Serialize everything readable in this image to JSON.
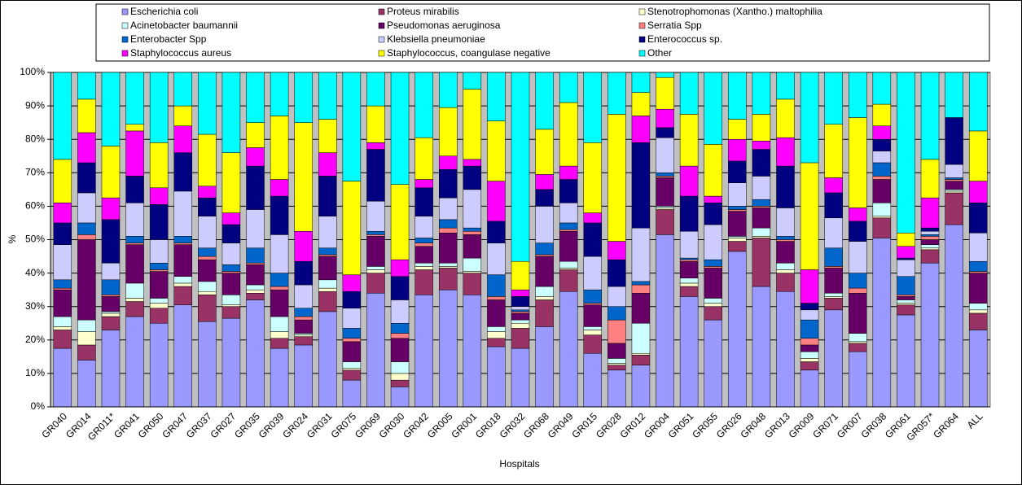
{
  "chart_data": {
    "type": "stacked_bar",
    "x_label": "Hospitals",
    "y_label": "%",
    "categories": [
      "GR040",
      "GR014",
      "GR011*",
      "GR041",
      "GR050",
      "GR047",
      "GR037",
      "GR027",
      "GR035",
      "GR039",
      "GR024",
      "GR031",
      "GR075",
      "GR069",
      "GR030",
      "GR042",
      "GR005",
      "GR001",
      "GR018",
      "GR032",
      "GR068",
      "GR049",
      "GR015",
      "GR028",
      "GR012",
      "GR004",
      "GR051",
      "GR055",
      "GR026",
      "GR048",
      "GR013",
      "GR009",
      "GR071",
      "GR007",
      "GR038",
      "GR061",
      "GR057*",
      "GR064",
      "ALL"
    ],
    "ylim": [
      0,
      100
    ],
    "yticks": [
      {
        "value": 0,
        "label": "0%"
      },
      {
        "value": 10,
        "label": "10%"
      },
      {
        "value": 20,
        "label": "20%"
      },
      {
        "value": 30,
        "label": "30%"
      },
      {
        "value": 40,
        "label": "40%"
      },
      {
        "value": 50,
        "label": "50%"
      },
      {
        "value": 60,
        "label": "60%"
      },
      {
        "value": 70,
        "label": "70%"
      },
      {
        "value": 80,
        "label": "80%"
      },
      {
        "value": 90,
        "label": "90%"
      },
      {
        "value": 100,
        "label": "100%"
      }
    ],
    "grid": true,
    "legend": "top",
    "series": [
      {
        "name": "Escherichia coli",
        "color": "#9999ff",
        "values": [
          17.5,
          14,
          23,
          27,
          25,
          30.5,
          25.5,
          26.5,
          32,
          17.5,
          18.5,
          28.5,
          8,
          34,
          6,
          33.5,
          35,
          33.5,
          18,
          17.5,
          24,
          34.5,
          16,
          11,
          12.5,
          51.5,
          33,
          26,
          46.5,
          36,
          34.5,
          11,
          29,
          16.5,
          50.5,
          27.5,
          43,
          54.5,
          23
        ]
      },
      {
        "name": "Proteus mirabilis",
        "color": "#993366",
        "values": [
          5.5,
          4.5,
          4,
          4.5,
          4.5,
          5.5,
          8,
          3.5,
          2,
          3,
          2.5,
          6,
          3,
          6,
          2,
          7.5,
          6.5,
          6.5,
          2.5,
          6,
          8,
          6.5,
          5.5,
          1.5,
          3,
          7.5,
          3,
          4,
          3,
          14.5,
          5.5,
          2.5,
          3.5,
          2.5,
          6,
          3,
          4,
          9.5,
          5
        ]
      },
      {
        "name": "Stenotrophomonas (Xantho.) maltophilia",
        "color": "#ffffcc",
        "values": [
          1,
          4,
          1,
          1,
          1.5,
          1,
          1,
          0.5,
          1,
          2,
          0.5,
          1,
          0.5,
          1,
          2,
          1,
          0.5,
          0.5,
          2,
          1.5,
          1,
          0.5,
          1.5,
          0.5,
          0.5,
          0.5,
          1,
          1,
          1,
          0.5,
          1,
          1,
          0.5,
          0.5,
          0.5,
          0.5,
          0.5,
          0.5,
          1
        ]
      },
      {
        "name": "Acinetobacter baumannii",
        "color": "#ccffff",
        "values": [
          3,
          3.5,
          0.5,
          4.5,
          1.5,
          2,
          3,
          3,
          1.5,
          4.5,
          0.5,
          2.5,
          2,
          1,
          3.5,
          1,
          1,
          4,
          1.5,
          1,
          3,
          2,
          1,
          1.5,
          9,
          0.5,
          1.5,
          1.5,
          0.5,
          2.5,
          2,
          2,
          1,
          2.5,
          4,
          1,
          1,
          0.5,
          2
        ]
      },
      {
        "name": "Pseudomonas aeruginosa",
        "color": "#660066",
        "values": [
          8,
          24,
          4.5,
          11.5,
          8,
          9.5,
          6.5,
          6.5,
          6,
          8,
          4,
          7,
          6,
          9,
          7,
          5,
          9,
          7,
          8,
          2,
          9,
          9,
          6.5,
          4.5,
          9,
          8.5,
          5,
          9,
          7.5,
          6,
          6.5,
          2,
          7.5,
          12,
          7,
          1,
          1.5,
          2.5,
          9
        ]
      },
      {
        "name": "Serratia Spp",
        "color": "#ff8080",
        "values": [
          0.5,
          1.5,
          0.5,
          0.5,
          0.5,
          0.5,
          1,
          0.5,
          0.5,
          1,
          1,
          0.5,
          1,
          0.5,
          1.5,
          1,
          1.5,
          1,
          1,
          0.5,
          0.5,
          0.5,
          0.5,
          7,
          2.5,
          0.5,
          0.5,
          0.5,
          0.5,
          0.5,
          0.5,
          2,
          0.5,
          1.5,
          1,
          0.5,
          1,
          0.5,
          0.5
        ]
      },
      {
        "name": "Enterobacter Spp",
        "color": "#0066cc",
        "values": [
          2.5,
          3.5,
          4.5,
          2,
          2,
          2,
          2.5,
          2,
          4.5,
          4,
          2.5,
          2,
          3,
          1,
          3,
          1.5,
          2.5,
          1,
          6.5,
          0.5,
          3.5,
          2,
          4,
          4,
          1,
          1,
          0.5,
          2,
          1,
          2,
          1,
          5.5,
          5.5,
          4.5,
          4,
          5.5,
          0.5,
          0.5,
          3
        ]
      },
      {
        "name": "Klebsiella pneumoniae",
        "color": "#ccccff",
        "values": [
          10.5,
          9,
          5,
          10,
          7,
          13.5,
          9.5,
          6.5,
          11.5,
          11.5,
          7,
          9.5,
          6,
          9,
          7,
          6.5,
          6.5,
          11.5,
          9.5,
          1,
          11,
          6,
          10,
          6,
          16,
          10.5,
          8,
          10.5,
          7,
          7,
          8.5,
          3,
          9,
          9.5,
          3.5,
          5,
          1,
          4,
          8.5
        ]
      },
      {
        "name": "Enterococcus sp.",
        "color": "#000080",
        "values": [
          6.5,
          9,
          13,
          8,
          10.5,
          11.5,
          5.5,
          5.5,
          13,
          11.5,
          7,
          12,
          5,
          15.5,
          7,
          8.5,
          8.5,
          7,
          6.5,
          3,
          5,
          7,
          10,
          8,
          25.5,
          3,
          10.5,
          6.5,
          6.5,
          8,
          12.5,
          2,
          7.5,
          6,
          3.5,
          0.5,
          1,
          14,
          9
        ]
      },
      {
        "name": "Staphylococcus aureus",
        "color": "#ff00ff",
        "values": [
          6,
          9,
          6.5,
          13.5,
          5,
          8,
          3.5,
          3.5,
          5.5,
          5,
          9,
          7,
          5,
          2,
          5,
          2.5,
          4,
          2,
          12,
          2,
          4.5,
          4,
          3,
          5.5,
          8,
          5.5,
          9,
          2,
          6.5,
          2.5,
          8.5,
          10,
          4.5,
          4,
          4,
          3.5,
          9,
          0,
          6.5
        ]
      },
      {
        "name": "Staphylococcus, coangulase negative",
        "color": "#ffff00",
        "values": [
          13,
          10,
          15.5,
          2,
          13.5,
          6,
          15.5,
          18,
          7.5,
          19,
          32.5,
          10,
          28,
          11,
          22.5,
          12.5,
          14.5,
          21,
          18,
          8.5,
          13.5,
          19,
          21,
          38,
          7,
          9.5,
          15.5,
          15.5,
          6,
          8,
          11.5,
          32,
          16,
          27,
          6.5,
          4,
          11.5,
          0,
          15
        ]
      },
      {
        "name": "Other",
        "color": "#00ffff",
        "values": [
          26,
          8,
          22,
          15.5,
          21,
          10,
          18.5,
          24,
          15,
          13,
          15,
          14,
          32.5,
          10,
          33.5,
          19.5,
          10.5,
          5,
          14.5,
          56.5,
          17,
          9,
          21,
          12.5,
          6,
          1.5,
          12.5,
          21.5,
          14,
          12.5,
          8,
          27,
          15.5,
          13.5,
          9.5,
          48,
          26,
          13.5,
          17.5
        ]
      }
    ]
  }
}
